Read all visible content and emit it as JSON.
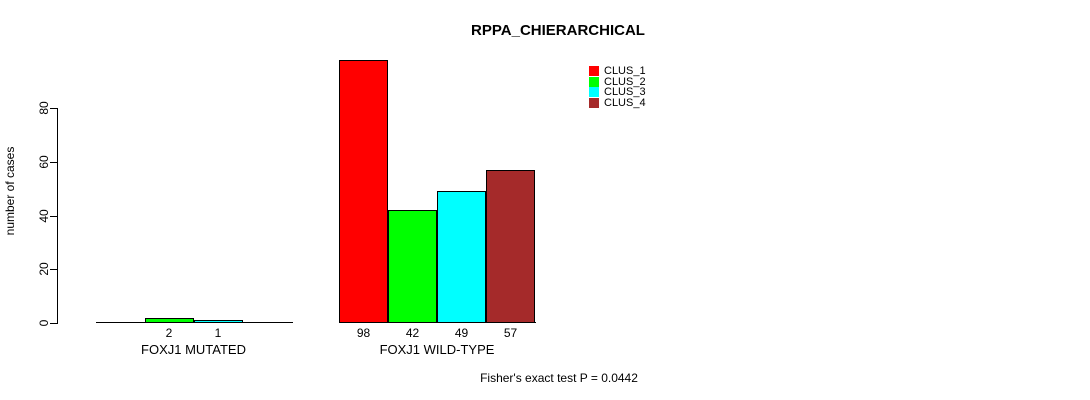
{
  "title": "RPPA_CHIERARCHICAL",
  "footer": "Fisher's exact test P = 0.0442",
  "chart_data": {
    "type": "bar",
    "title": "RPPA_CHIERARCHICAL",
    "xlabel": "",
    "ylabel": "number of cases",
    "yticks": [
      0,
      20,
      40,
      60,
      80
    ],
    "ylim": [
      0,
      100
    ],
    "grid": false,
    "legend_position": "top-right",
    "annotation": "Fisher's exact test P = 0.0442",
    "categories": [
      "FOXJ1 MUTATED",
      "FOXJ1 WILD-TYPE"
    ],
    "series": [
      {
        "name": "CLUS_1",
        "color": "#FF0000",
        "values": [
          0,
          98
        ]
      },
      {
        "name": "CLUS_2",
        "color": "#00FF00",
        "values": [
          2,
          42
        ]
      },
      {
        "name": "CLUS_3",
        "color": "#00FFFF",
        "values": [
          1,
          49
        ]
      },
      {
        "name": "CLUS_4",
        "color": "#A52A2A",
        "values": [
          0,
          57
        ]
      }
    ],
    "bar_value_labels": [
      [
        "2",
        "1"
      ],
      [
        "98",
        "42",
        "49",
        "57"
      ]
    ]
  }
}
